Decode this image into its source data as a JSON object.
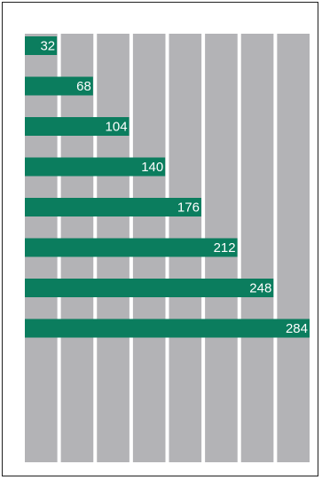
{
  "chart_data": {
    "type": "bar",
    "orientation": "horizontal",
    "values": [
      32,
      68,
      104,
      140,
      176,
      212,
      248,
      284
    ],
    "xlim": [
      0,
      284
    ],
    "grid": true,
    "grid_columns": 8,
    "colors": {
      "bar": "#0b7d5e",
      "grid_column": "#b3b3b6",
      "background": "#ffffff",
      "label": "#ffffff"
    }
  }
}
